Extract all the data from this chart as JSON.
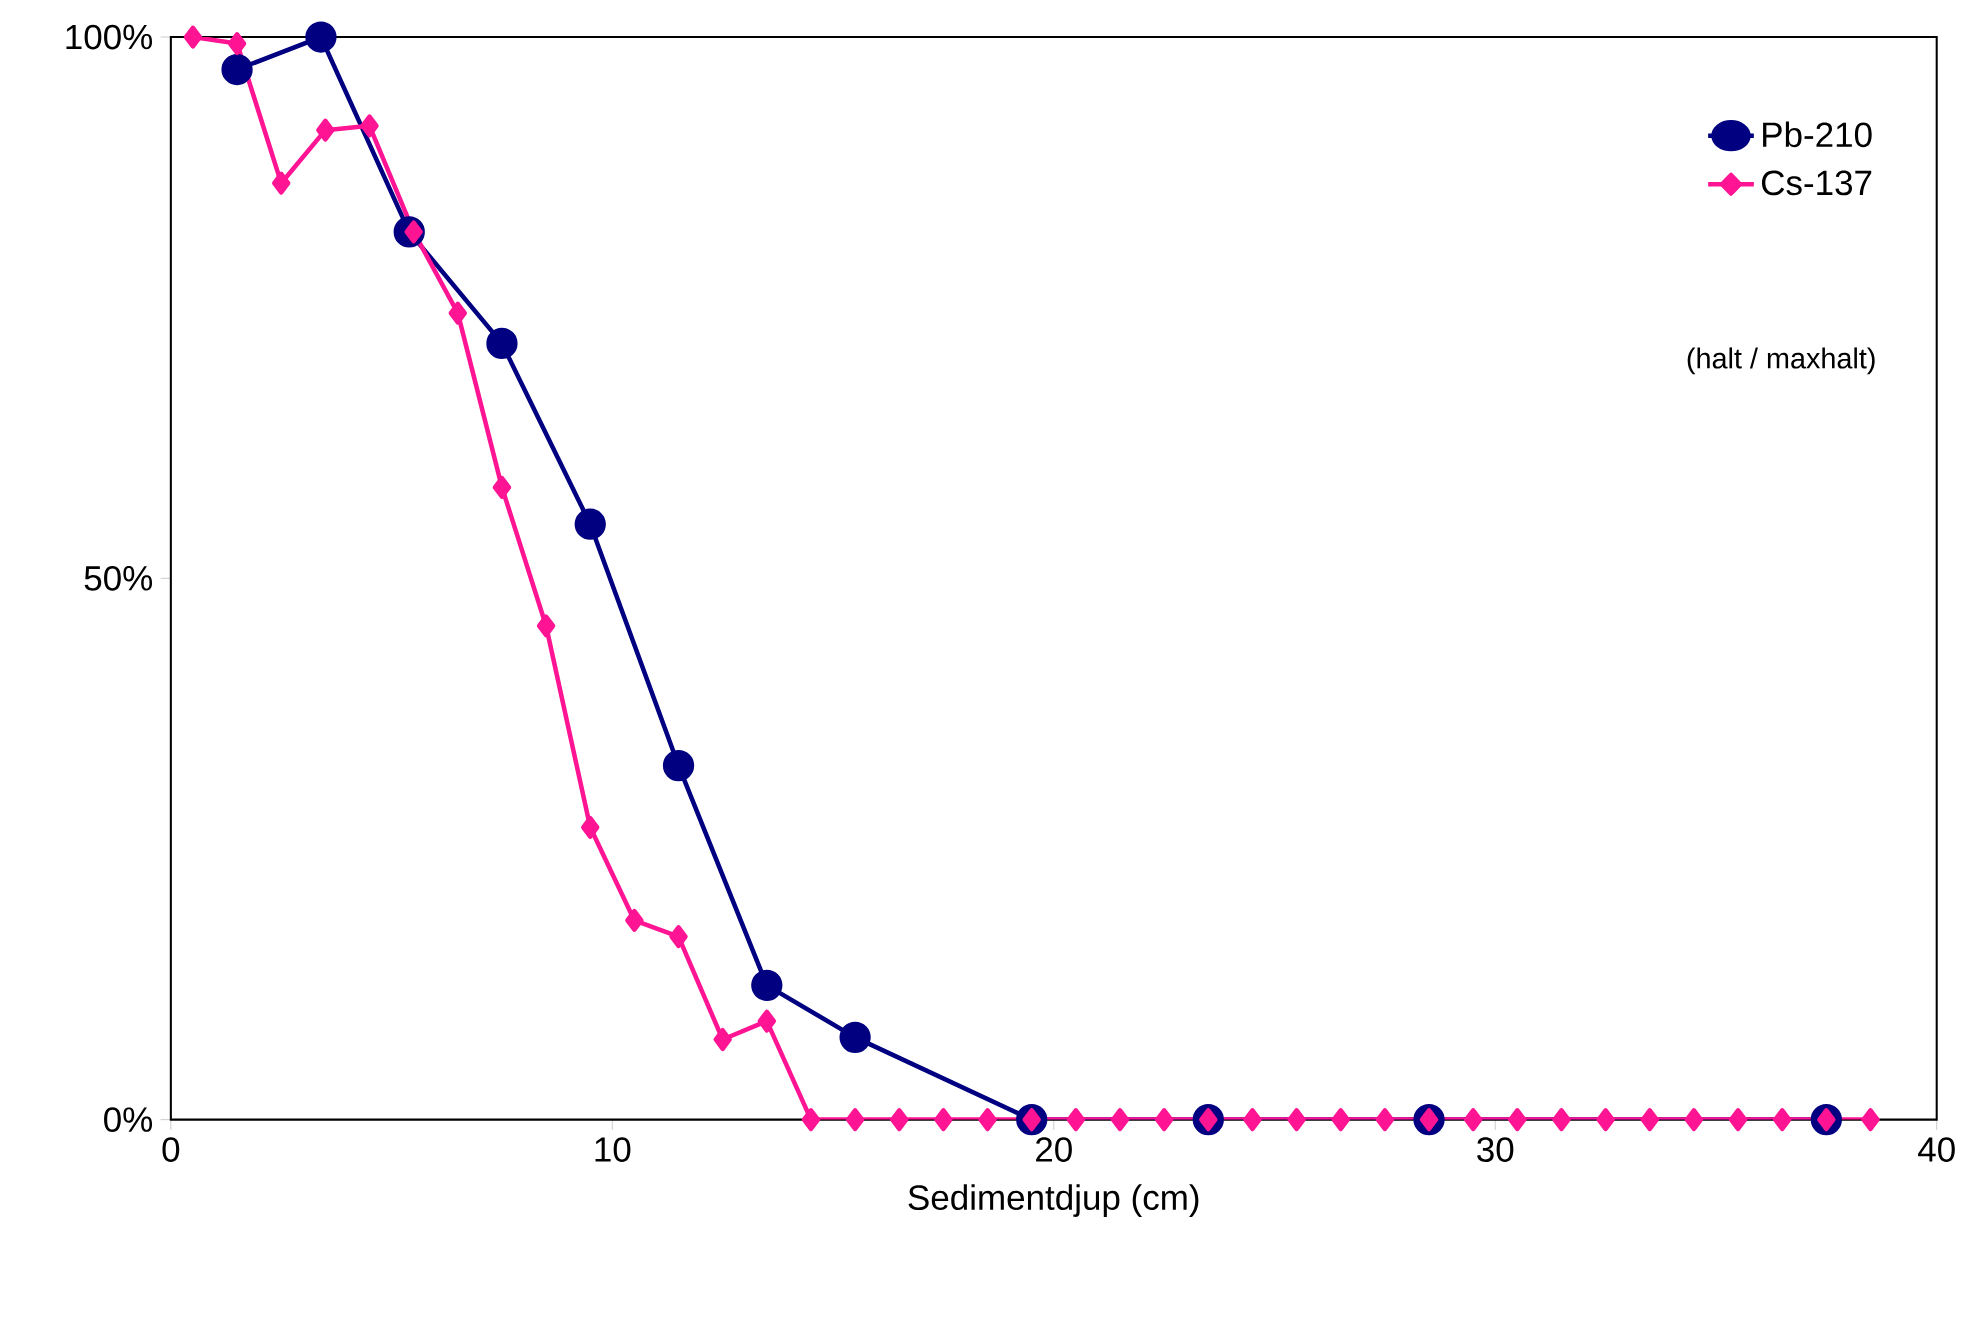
{
  "chart_data": {
    "type": "line",
    "xlabel": "Sedimentdjup  (cm)",
    "xlim": [
      0,
      40
    ],
    "xticks": [
      0,
      10,
      20,
      30,
      40
    ],
    "ylim": [
      0,
      100
    ],
    "yticks": [
      {
        "value": 0,
        "label": "0%"
      },
      {
        "value": 50,
        "label": "50%"
      },
      {
        "value": 100,
        "label": "100%"
      }
    ],
    "grid": false,
    "legend": "top right",
    "annotations": [
      "(halt / maxhalt)"
    ],
    "series": [
      {
        "name": "Pb-210",
        "color": "#000080",
        "marker": "circle",
        "x": [
          1.5,
          3.4,
          5.4,
          7.5,
          9.5,
          11.5,
          13.5,
          15.5,
          19.5,
          23.5,
          28.5,
          37.5
        ],
        "values": [
          97,
          100,
          82,
          71.7,
          55,
          32.7,
          12.4,
          7.6,
          0,
          0,
          0,
          0
        ]
      },
      {
        "name": "Cs-137",
        "color": "#ff1493",
        "marker": "diamond",
        "x": [
          0.5,
          1.5,
          2.5,
          3.5,
          4.5,
          5.5,
          6.5,
          7.5,
          8.5,
          9.5,
          10.5,
          11.5,
          12.5,
          13.5,
          14.5,
          15.5,
          16.5,
          17.5,
          18.5,
          19.5,
          20.5,
          21.5,
          22.5,
          23.5,
          24.5,
          25.5,
          26.5,
          27.5,
          28.5,
          29.5,
          30.5,
          31.5,
          32.5,
          33.5,
          34.5,
          35.5,
          36.5,
          37.5,
          38.5
        ],
        "values": [
          100,
          99.4,
          86.5,
          91.4,
          91.8,
          82,
          74.5,
          58.4,
          45.6,
          27,
          18.4,
          16.9,
          7.4,
          9.1,
          0,
          0,
          0,
          0,
          0,
          0,
          0,
          0,
          0,
          0,
          0,
          0,
          0,
          0,
          0,
          0,
          0,
          0,
          0,
          0,
          0,
          0,
          0,
          0,
          0
        ]
      }
    ]
  }
}
